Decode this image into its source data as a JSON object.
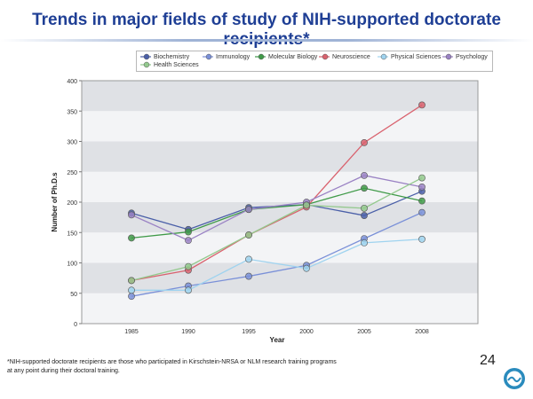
{
  "slide": {
    "title": "Trends in major fields of study of NIH-supported doctorate recipients*",
    "footnote_line1": "*NIH-supported  doctorate recipients are those who participated in Kirschstein-NRSA  or NLM research training programs",
    "footnote_line2": "at any point during their doctoral training.",
    "page_number": "24"
  },
  "chart_data": {
    "type": "line",
    "title": "",
    "xlabel": "Year",
    "ylabel": "Number of Ph.D.s",
    "x": [
      "1985",
      "1990",
      "1995",
      "2000",
      "2005",
      "2008"
    ],
    "ylim": [
      0,
      400
    ],
    "yticks": [
      0,
      50,
      100,
      150,
      200,
      250,
      300,
      350,
      400
    ],
    "grid": "horizontal bands",
    "legend_position": "top",
    "series": [
      {
        "name": "Biochemistry",
        "color": "#4a5fa8",
        "values": [
          182,
          155,
          191,
          196,
          178,
          218
        ]
      },
      {
        "name": "Immunology",
        "color": "#7a90d8",
        "values": [
          45,
          62,
          78,
          96,
          140,
          183
        ]
      },
      {
        "name": "Molecular Biology",
        "color": "#3f9a48",
        "values": [
          141,
          151,
          188,
          196,
          223,
          202
        ]
      },
      {
        "name": "Neuroscience",
        "color": "#d9626e",
        "values": [
          71,
          88,
          146,
          192,
          298,
          360
        ]
      },
      {
        "name": "Physical Sciences",
        "color": "#9fd3ef",
        "values": [
          55,
          55,
          106,
          91,
          133,
          139
        ]
      },
      {
        "name": "Psychology",
        "color": "#9a82c4",
        "values": [
          179,
          137,
          188,
          200,
          244,
          225
        ]
      },
      {
        "name": "Health Sciences",
        "color": "#93c98d",
        "values": [
          71,
          94,
          146,
          195,
          190,
          240
        ]
      }
    ]
  }
}
